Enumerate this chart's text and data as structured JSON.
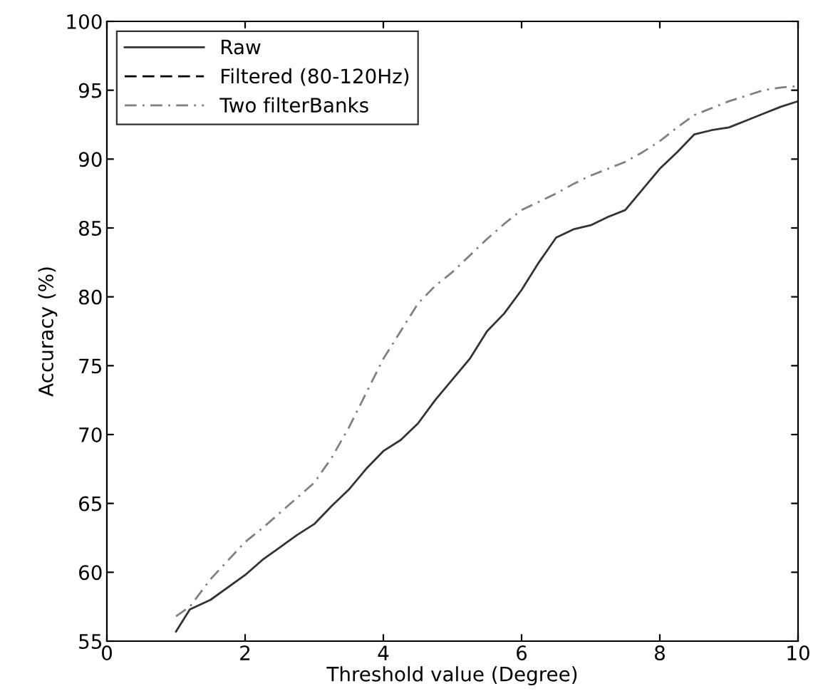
{
  "chart_data": {
    "type": "line",
    "xlabel": "Threshold value (Degree)",
    "ylabel": "Accuracy (%)",
    "x": [
      1,
      1.2,
      1.5,
      2,
      2.25,
      2.5,
      2.75,
      3,
      3.25,
      3.5,
      3.75,
      4,
      4.25,
      4.5,
      4.75,
      5,
      5.25,
      5.5,
      5.75,
      6,
      6.25,
      6.5,
      6.75,
      7,
      7.25,
      7.5,
      7.75,
      8,
      8.25,
      8.5,
      8.75,
      9,
      9.25,
      9.5,
      9.75,
      10
    ],
    "series": [
      {
        "name": "Raw",
        "color": "#333333",
        "line_style": "solid",
        "values": [
          55.7,
          57.3,
          58.0,
          59.8,
          60.9,
          61.8,
          62.7,
          63.5,
          64.8,
          66.0,
          67.5,
          68.8,
          69.6,
          70.8,
          72.5,
          74.0,
          75.5,
          77.5,
          78.8,
          80.5,
          82.5,
          84.3,
          84.9,
          85.2,
          85.8,
          86.3,
          87.8,
          89.3,
          90.5,
          91.8,
          92.1,
          92.3,
          92.8,
          93.3,
          93.8,
          94.2
        ]
      },
      {
        "name": "Filtered (80-120Hz)",
        "color": "#000000",
        "line_style": "dashed",
        "values": [
          null,
          null,
          null,
          null,
          null,
          null,
          null,
          null,
          null,
          null,
          null,
          null,
          null,
          null,
          null,
          null,
          null,
          null,
          null,
          null,
          null,
          null,
          null,
          null,
          null,
          null,
          null,
          null,
          null,
          null,
          null,
          null,
          null,
          null,
          null,
          null
        ]
      },
      {
        "name": "Two filterBanks",
        "color": "#808080",
        "line_style": "dashdot",
        "values": [
          56.8,
          57.5,
          59.5,
          62.2,
          63.2,
          64.3,
          65.4,
          66.5,
          68.3,
          70.5,
          73.0,
          75.5,
          77.5,
          79.5,
          80.8,
          81.8,
          83.0,
          84.2,
          85.3,
          86.3,
          86.9,
          87.5,
          88.2,
          88.8,
          89.3,
          89.8,
          90.5,
          91.3,
          92.3,
          93.2,
          93.7,
          94.2,
          94.6,
          95.0,
          95.2,
          95.3
        ]
      }
    ],
    "xlim": [
      0,
      10
    ],
    "xticks": [
      0,
      2,
      4,
      6,
      8,
      10
    ],
    "ylim": [
      55,
      100
    ],
    "yticks": [
      55,
      60,
      65,
      70,
      75,
      80,
      85,
      90,
      95,
      100
    ],
    "grid": false,
    "legend": "top left",
    "marker": "none"
  }
}
